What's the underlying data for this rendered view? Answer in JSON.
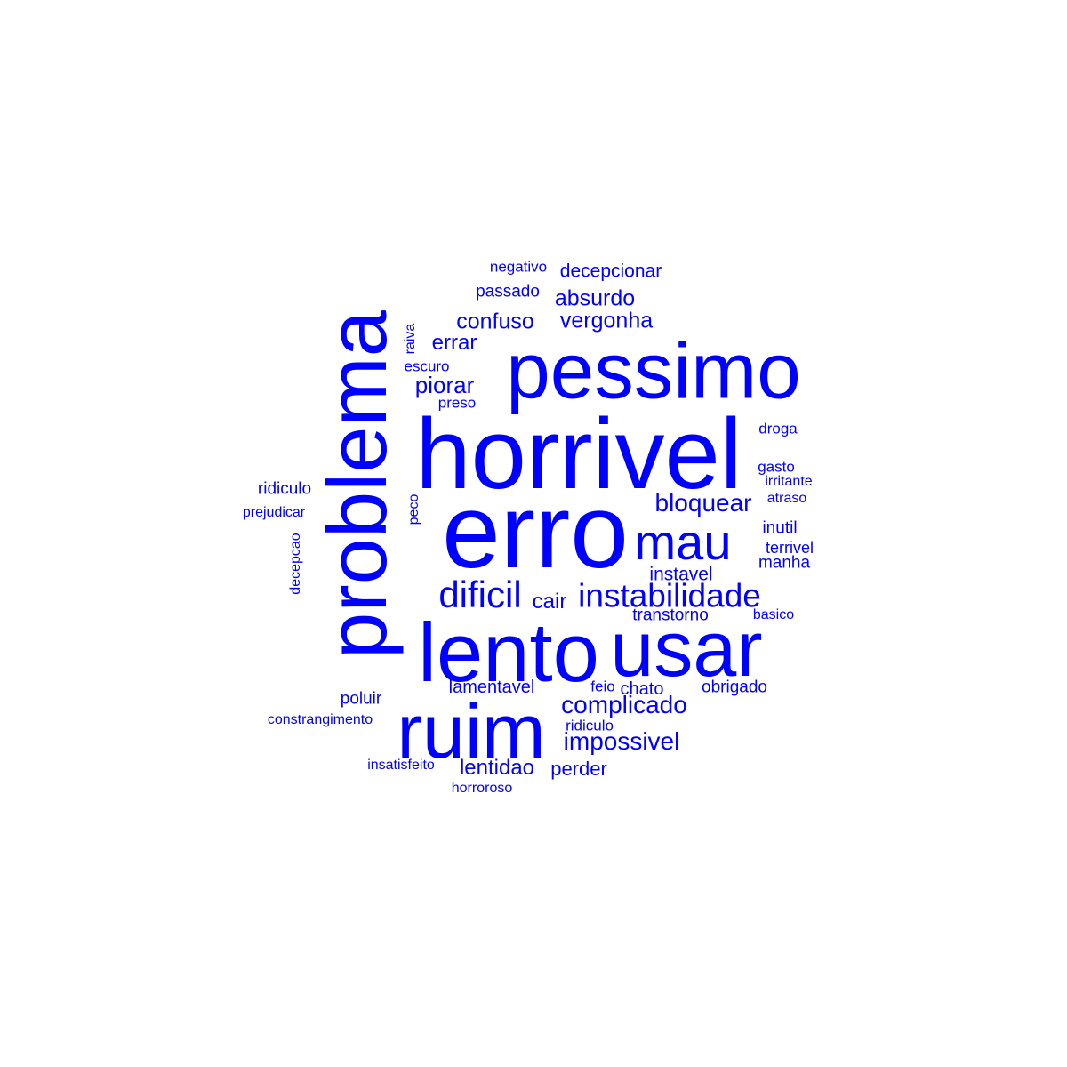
{
  "cloud": {
    "color": "#0000ff",
    "words": [
      {
        "text": "erro",
        "weight": 10
      },
      {
        "text": "horrivel",
        "weight": 9
      },
      {
        "text": "problema",
        "weight": 9
      },
      {
        "text": "lento",
        "weight": 8
      },
      {
        "text": "usar",
        "weight": 7
      },
      {
        "text": "pessimo",
        "weight": 7
      },
      {
        "text": "ruim",
        "weight": 8
      },
      {
        "text": "mau",
        "weight": 5
      },
      {
        "text": "instabilidade",
        "weight": 4
      },
      {
        "text": "dificil",
        "weight": 4
      },
      {
        "text": "bloquear",
        "weight": 3
      },
      {
        "text": "complicado",
        "weight": 3
      },
      {
        "text": "impossivel",
        "weight": 3
      },
      {
        "text": "confuso",
        "weight": 3
      },
      {
        "text": "vergonha",
        "weight": 3
      },
      {
        "text": "absurdo",
        "weight": 3
      },
      {
        "text": "errar",
        "weight": 2
      },
      {
        "text": "piorar",
        "weight": 2
      },
      {
        "text": "cair",
        "weight": 2
      },
      {
        "text": "lentidao",
        "weight": 2
      },
      {
        "text": "perder",
        "weight": 2
      },
      {
        "text": "instavel",
        "weight": 2
      },
      {
        "text": "decepcionar",
        "weight": 2
      },
      {
        "text": "lamentavel",
        "weight": 2
      },
      {
        "text": "chato",
        "weight": 2
      },
      {
        "text": "obrigado",
        "weight": 2
      },
      {
        "text": "transtorno",
        "weight": 2
      },
      {
        "text": "poluir",
        "weight": 2
      },
      {
        "text": "inutil",
        "weight": 2
      },
      {
        "text": "manha",
        "weight": 2
      },
      {
        "text": "terrivel",
        "weight": 2
      },
      {
        "text": "ridiculo",
        "weight": 2
      },
      {
        "text": "passado",
        "weight": 2
      },
      {
        "text": "negativo",
        "weight": 1
      },
      {
        "text": "raiva",
        "weight": 1
      },
      {
        "text": "escuro",
        "weight": 1
      },
      {
        "text": "preso",
        "weight": 1
      },
      {
        "text": "peco",
        "weight": 1
      },
      {
        "text": "droga",
        "weight": 1
      },
      {
        "text": "gasto",
        "weight": 1
      },
      {
        "text": "irritante",
        "weight": 1
      },
      {
        "text": "atraso",
        "weight": 1
      },
      {
        "text": "basico",
        "weight": 1
      },
      {
        "text": "prejudicar",
        "weight": 1
      },
      {
        "text": "decepcao",
        "weight": 1
      },
      {
        "text": "constrangimento",
        "weight": 1
      },
      {
        "text": "insatisfeito",
        "weight": 1
      },
      {
        "text": "horroroso",
        "weight": 1
      },
      {
        "text": "feio",
        "weight": 1
      },
      {
        "text": "ridiculo",
        "weight": 1
      }
    ]
  }
}
